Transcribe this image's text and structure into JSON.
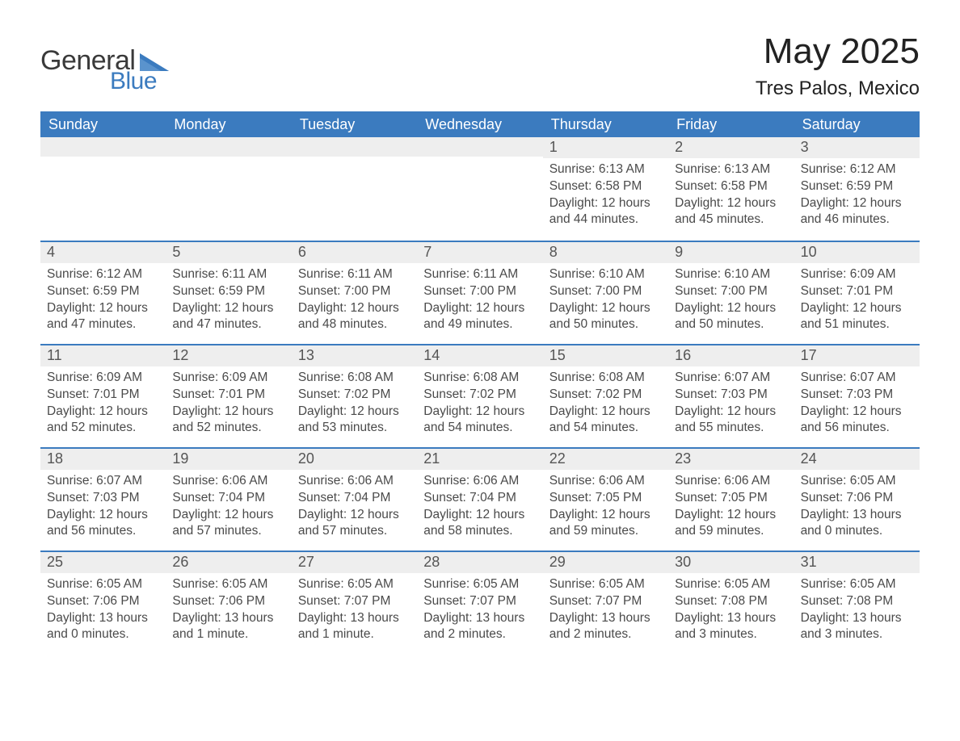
{
  "brand": {
    "logo_text_1": "General",
    "logo_text_2": "Blue",
    "accent_color": "#3b7bbf"
  },
  "header": {
    "title": "May 2025",
    "location": "Tres Palos, Mexico"
  },
  "calendar": {
    "dow": [
      "Sunday",
      "Monday",
      "Tuesday",
      "Wednesday",
      "Thursday",
      "Friday",
      "Saturday"
    ],
    "colors": {
      "header_bg": "#3b7bbf",
      "header_text": "#ffffff",
      "daynum_bg": "#eeeeee",
      "week_border": "#3b7bbf",
      "text": "#333333",
      "body_text": "#4a4a4a"
    },
    "typography": {
      "title_fontsize_pt": 33,
      "location_fontsize_pt": 18,
      "dow_fontsize_pt": 14,
      "daynum_fontsize_pt": 14,
      "body_fontsize_pt": 12
    },
    "weeks": [
      [
        null,
        null,
        null,
        null,
        {
          "n": "1",
          "sunrise": "6:13 AM",
          "sunset": "6:58 PM",
          "daylight": "12 hours and 44 minutes."
        },
        {
          "n": "2",
          "sunrise": "6:13 AM",
          "sunset": "6:58 PM",
          "daylight": "12 hours and 45 minutes."
        },
        {
          "n": "3",
          "sunrise": "6:12 AM",
          "sunset": "6:59 PM",
          "daylight": "12 hours and 46 minutes."
        }
      ],
      [
        {
          "n": "4",
          "sunrise": "6:12 AM",
          "sunset": "6:59 PM",
          "daylight": "12 hours and 47 minutes."
        },
        {
          "n": "5",
          "sunrise": "6:11 AM",
          "sunset": "6:59 PM",
          "daylight": "12 hours and 47 minutes."
        },
        {
          "n": "6",
          "sunrise": "6:11 AM",
          "sunset": "7:00 PM",
          "daylight": "12 hours and 48 minutes."
        },
        {
          "n": "7",
          "sunrise": "6:11 AM",
          "sunset": "7:00 PM",
          "daylight": "12 hours and 49 minutes."
        },
        {
          "n": "8",
          "sunrise": "6:10 AM",
          "sunset": "7:00 PM",
          "daylight": "12 hours and 50 minutes."
        },
        {
          "n": "9",
          "sunrise": "6:10 AM",
          "sunset": "7:00 PM",
          "daylight": "12 hours and 50 minutes."
        },
        {
          "n": "10",
          "sunrise": "6:09 AM",
          "sunset": "7:01 PM",
          "daylight": "12 hours and 51 minutes."
        }
      ],
      [
        {
          "n": "11",
          "sunrise": "6:09 AM",
          "sunset": "7:01 PM",
          "daylight": "12 hours and 52 minutes."
        },
        {
          "n": "12",
          "sunrise": "6:09 AM",
          "sunset": "7:01 PM",
          "daylight": "12 hours and 52 minutes."
        },
        {
          "n": "13",
          "sunrise": "6:08 AM",
          "sunset": "7:02 PM",
          "daylight": "12 hours and 53 minutes."
        },
        {
          "n": "14",
          "sunrise": "6:08 AM",
          "sunset": "7:02 PM",
          "daylight": "12 hours and 54 minutes."
        },
        {
          "n": "15",
          "sunrise": "6:08 AM",
          "sunset": "7:02 PM",
          "daylight": "12 hours and 54 minutes."
        },
        {
          "n": "16",
          "sunrise": "6:07 AM",
          "sunset": "7:03 PM",
          "daylight": "12 hours and 55 minutes."
        },
        {
          "n": "17",
          "sunrise": "6:07 AM",
          "sunset": "7:03 PM",
          "daylight": "12 hours and 56 minutes."
        }
      ],
      [
        {
          "n": "18",
          "sunrise": "6:07 AM",
          "sunset": "7:03 PM",
          "daylight": "12 hours and 56 minutes."
        },
        {
          "n": "19",
          "sunrise": "6:06 AM",
          "sunset": "7:04 PM",
          "daylight": "12 hours and 57 minutes."
        },
        {
          "n": "20",
          "sunrise": "6:06 AM",
          "sunset": "7:04 PM",
          "daylight": "12 hours and 57 minutes."
        },
        {
          "n": "21",
          "sunrise": "6:06 AM",
          "sunset": "7:04 PM",
          "daylight": "12 hours and 58 minutes."
        },
        {
          "n": "22",
          "sunrise": "6:06 AM",
          "sunset": "7:05 PM",
          "daylight": "12 hours and 59 minutes."
        },
        {
          "n": "23",
          "sunrise": "6:06 AM",
          "sunset": "7:05 PM",
          "daylight": "12 hours and 59 minutes."
        },
        {
          "n": "24",
          "sunrise": "6:05 AM",
          "sunset": "7:06 PM",
          "daylight": "13 hours and 0 minutes."
        }
      ],
      [
        {
          "n": "25",
          "sunrise": "6:05 AM",
          "sunset": "7:06 PM",
          "daylight": "13 hours and 0 minutes."
        },
        {
          "n": "26",
          "sunrise": "6:05 AM",
          "sunset": "7:06 PM",
          "daylight": "13 hours and 1 minute."
        },
        {
          "n": "27",
          "sunrise": "6:05 AM",
          "sunset": "7:07 PM",
          "daylight": "13 hours and 1 minute."
        },
        {
          "n": "28",
          "sunrise": "6:05 AM",
          "sunset": "7:07 PM",
          "daylight": "13 hours and 2 minutes."
        },
        {
          "n": "29",
          "sunrise": "6:05 AM",
          "sunset": "7:07 PM",
          "daylight": "13 hours and 2 minutes."
        },
        {
          "n": "30",
          "sunrise": "6:05 AM",
          "sunset": "7:08 PM",
          "daylight": "13 hours and 3 minutes."
        },
        {
          "n": "31",
          "sunrise": "6:05 AM",
          "sunset": "7:08 PM",
          "daylight": "13 hours and 3 minutes."
        }
      ]
    ],
    "labels": {
      "sunrise_prefix": "Sunrise: ",
      "sunset_prefix": "Sunset: ",
      "daylight_prefix": "Daylight: "
    }
  }
}
